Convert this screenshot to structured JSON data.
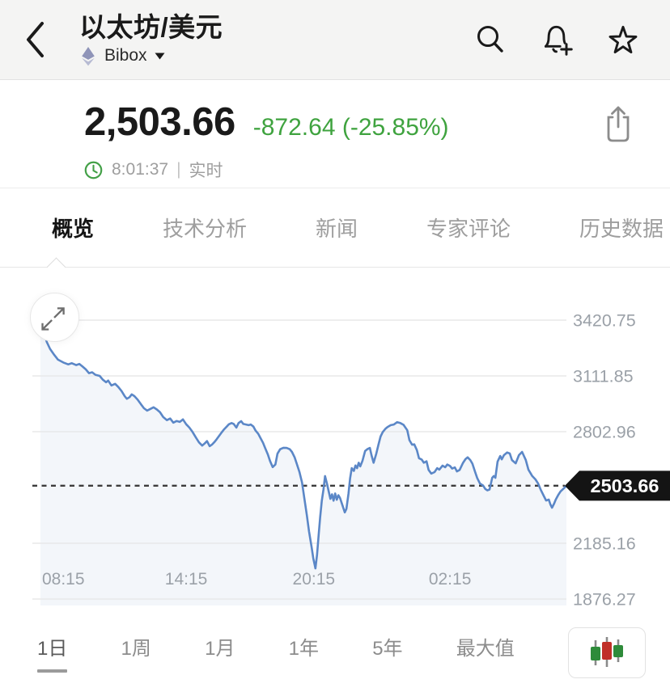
{
  "header": {
    "title": "以太坊/美元",
    "exchange": "Bibox"
  },
  "price": {
    "value": "2,503.66",
    "change": "-872.64 (-25.85%)",
    "change_color": "#3fa33f",
    "time": "8:01:37",
    "separator": "|",
    "status": "实时"
  },
  "tabs": [
    {
      "label": "概览",
      "active": true
    },
    {
      "label": "技术分析",
      "active": false
    },
    {
      "label": "新闻",
      "active": false
    },
    {
      "label": "专家评论",
      "active": false
    },
    {
      "label": "历史数据",
      "active": false
    }
  ],
  "ranges": [
    {
      "label": "1日",
      "active": true
    },
    {
      "label": "1周",
      "active": false
    },
    {
      "label": "1月",
      "active": false
    },
    {
      "label": "1年",
      "active": false
    },
    {
      "label": "5年",
      "active": false
    },
    {
      "label": "最大值",
      "active": false
    }
  ],
  "chart_data": {
    "type": "line",
    "title": "以太坊/美元 1日 走势",
    "line_color": "#5b87c7",
    "area_color": "rgba(100,135,190,0.08)",
    "grid_color": "#e8e8e9",
    "axis_text_color": "#9ba1a8",
    "dashed_color": "#3c3c3c",
    "badge_bg": "#141414",
    "badge_text_color": "#ffffff",
    "current_price": 2503.66,
    "current_price_label": "2503.66",
    "ylim": [
      1840,
      3490
    ],
    "y_ticks": [
      3420.75,
      3111.85,
      2802.96,
      2185.16,
      1876.27
    ],
    "x_ticks": [
      {
        "label": "08:15",
        "t": 0.058
      },
      {
        "label": "14:15",
        "t": 0.288
      },
      {
        "label": "20:15",
        "t": 0.527
      },
      {
        "label": "02:15",
        "t": 0.782
      }
    ],
    "points": [
      [
        0.015,
        3368
      ],
      [
        0.023,
        3340
      ],
      [
        0.027,
        3300
      ],
      [
        0.033,
        3262
      ],
      [
        0.041,
        3228
      ],
      [
        0.048,
        3202
      ],
      [
        0.058,
        3186
      ],
      [
        0.067,
        3176
      ],
      [
        0.074,
        3182
      ],
      [
        0.082,
        3172
      ],
      [
        0.088,
        3178
      ],
      [
        0.094,
        3164
      ],
      [
        0.1,
        3148
      ],
      [
        0.106,
        3127
      ],
      [
        0.112,
        3132
      ],
      [
        0.118,
        3118
      ],
      [
        0.126,
        3112
      ],
      [
        0.132,
        3091
      ],
      [
        0.138,
        3077
      ],
      [
        0.142,
        3086
      ],
      [
        0.148,
        3059
      ],
      [
        0.155,
        3068
      ],
      [
        0.161,
        3050
      ],
      [
        0.167,
        3028
      ],
      [
        0.173,
        2999
      ],
      [
        0.177,
        2985
      ],
      [
        0.182,
        2994
      ],
      [
        0.186,
        3010
      ],
      [
        0.191,
        3000
      ],
      [
        0.197,
        2981
      ],
      [
        0.203,
        2956
      ],
      [
        0.209,
        2933
      ],
      [
        0.215,
        2920
      ],
      [
        0.221,
        2929
      ],
      [
        0.227,
        2938
      ],
      [
        0.233,
        2926
      ],
      [
        0.239,
        2911
      ],
      [
        0.245,
        2884
      ],
      [
        0.252,
        2867
      ],
      [
        0.258,
        2876
      ],
      [
        0.264,
        2853
      ],
      [
        0.27,
        2862
      ],
      [
        0.276,
        2857
      ],
      [
        0.282,
        2871
      ],
      [
        0.288,
        2844
      ],
      [
        0.294,
        2826
      ],
      [
        0.3,
        2801
      ],
      [
        0.306,
        2771
      ],
      [
        0.312,
        2744
      ],
      [
        0.318,
        2726
      ],
      [
        0.323,
        2739
      ],
      [
        0.327,
        2751
      ],
      [
        0.332,
        2723
      ],
      [
        0.336,
        2731
      ],
      [
        0.341,
        2746
      ],
      [
        0.345,
        2761
      ],
      [
        0.35,
        2781
      ],
      [
        0.355,
        2801
      ],
      [
        0.359,
        2816
      ],
      [
        0.364,
        2831
      ],
      [
        0.368,
        2844
      ],
      [
        0.373,
        2851
      ],
      [
        0.377,
        2846
      ],
      [
        0.382,
        2826
      ],
      [
        0.386,
        2851
      ],
      [
        0.391,
        2861
      ],
      [
        0.395,
        2846
      ],
      [
        0.4,
        2843
      ],
      [
        0.405,
        2839
      ],
      [
        0.409,
        2843
      ],
      [
        0.414,
        2831
      ],
      [
        0.418,
        2809
      ],
      [
        0.423,
        2791
      ],
      [
        0.427,
        2769
      ],
      [
        0.432,
        2741
      ],
      [
        0.436,
        2711
      ],
      [
        0.441,
        2676
      ],
      [
        0.445,
        2641
      ],
      [
        0.45,
        2607
      ],
      [
        0.455,
        2621
      ],
      [
        0.459,
        2681
      ],
      [
        0.464,
        2706
      ],
      [
        0.47,
        2714
      ],
      [
        0.476,
        2713
      ],
      [
        0.482,
        2706
      ],
      [
        0.486,
        2691
      ],
      [
        0.491,
        2661
      ],
      [
        0.495,
        2626
      ],
      [
        0.5,
        2581
      ],
      [
        0.505,
        2521
      ],
      [
        0.509,
        2441
      ],
      [
        0.514,
        2341
      ],
      [
        0.518,
        2251
      ],
      [
        0.523,
        2161
      ],
      [
        0.526,
        2101
      ],
      [
        0.529,
        2061
      ],
      [
        0.53,
        2046
      ],
      [
        0.533,
        2121
      ],
      [
        0.536,
        2231
      ],
      [
        0.539,
        2331
      ],
      [
        0.542,
        2421
      ],
      [
        0.545,
        2481
      ],
      [
        0.548,
        2557
      ],
      [
        0.552,
        2511
      ],
      [
        0.555,
        2471
      ],
      [
        0.558,
        2431
      ],
      [
        0.561,
        2456
      ],
      [
        0.564,
        2421
      ],
      [
        0.567,
        2461
      ],
      [
        0.57,
        2426
      ],
      [
        0.573,
        2451
      ],
      [
        0.576,
        2436
      ],
      [
        0.58,
        2401
      ],
      [
        0.585,
        2356
      ],
      [
        0.588,
        2376
      ],
      [
        0.592,
        2461
      ],
      [
        0.595,
        2546
      ],
      [
        0.598,
        2601
      ],
      [
        0.602,
        2586
      ],
      [
        0.605,
        2616
      ],
      [
        0.608,
        2601
      ],
      [
        0.611,
        2631
      ],
      [
        0.614,
        2611
      ],
      [
        0.618,
        2641
      ],
      [
        0.623,
        2696
      ],
      [
        0.627,
        2706
      ],
      [
        0.632,
        2713
      ],
      [
        0.635,
        2673
      ],
      [
        0.639,
        2631
      ],
      [
        0.644,
        2681
      ],
      [
        0.648,
        2731
      ],
      [
        0.652,
        2776
      ],
      [
        0.656,
        2801
      ],
      [
        0.661,
        2819
      ],
      [
        0.665,
        2829
      ],
      [
        0.671,
        2839
      ],
      [
        0.677,
        2843
      ],
      [
        0.683,
        2856
      ],
      [
        0.689,
        2851
      ],
      [
        0.695,
        2841
      ],
      [
        0.702,
        2811
      ],
      [
        0.706,
        2756
      ],
      [
        0.711,
        2731
      ],
      [
        0.715,
        2733
      ],
      [
        0.72,
        2701
      ],
      [
        0.724,
        2656
      ],
      [
        0.729,
        2649
      ],
      [
        0.733,
        2631
      ],
      [
        0.738,
        2639
      ],
      [
        0.742,
        2591
      ],
      [
        0.747,
        2571
      ],
      [
        0.753,
        2579
      ],
      [
        0.758,
        2601
      ],
      [
        0.762,
        2593
      ],
      [
        0.768,
        2615
      ],
      [
        0.773,
        2606
      ],
      [
        0.777,
        2621
      ],
      [
        0.782,
        2613
      ],
      [
        0.786,
        2599
      ],
      [
        0.791,
        2605
      ],
      [
        0.795,
        2583
      ],
      [
        0.8,
        2591
      ],
      [
        0.806,
        2629
      ],
      [
        0.811,
        2651
      ],
      [
        0.815,
        2661
      ],
      [
        0.82,
        2646
      ],
      [
        0.824,
        2626
      ],
      [
        0.829,
        2581
      ],
      [
        0.833,
        2546
      ],
      [
        0.838,
        2516
      ],
      [
        0.844,
        2505
      ],
      [
        0.848,
        2486
      ],
      [
        0.852,
        2478
      ],
      [
        0.856,
        2483
      ],
      [
        0.861,
        2548
      ],
      [
        0.864,
        2557
      ],
      [
        0.867,
        2548
      ],
      [
        0.871,
        2637
      ],
      [
        0.876,
        2668
      ],
      [
        0.879,
        2650
      ],
      [
        0.883,
        2673
      ],
      [
        0.889,
        2688
      ],
      [
        0.894,
        2682
      ],
      [
        0.898,
        2646
      ],
      [
        0.905,
        2628
      ],
      [
        0.911,
        2673
      ],
      [
        0.917,
        2691
      ],
      [
        0.924,
        2646
      ],
      [
        0.929,
        2592
      ],
      [
        0.936,
        2557
      ],
      [
        0.942,
        2539
      ],
      [
        0.947,
        2516
      ],
      [
        0.952,
        2481
      ],
      [
        0.958,
        2445
      ],
      [
        0.962,
        2422
      ],
      [
        0.967,
        2427
      ],
      [
        0.97,
        2400
      ],
      [
        0.973,
        2382
      ],
      [
        0.977,
        2405
      ],
      [
        0.98,
        2427
      ],
      [
        0.985,
        2454
      ],
      [
        0.989,
        2472
      ],
      [
        0.994,
        2486
      ],
      [
        1.0,
        2504
      ]
    ]
  }
}
